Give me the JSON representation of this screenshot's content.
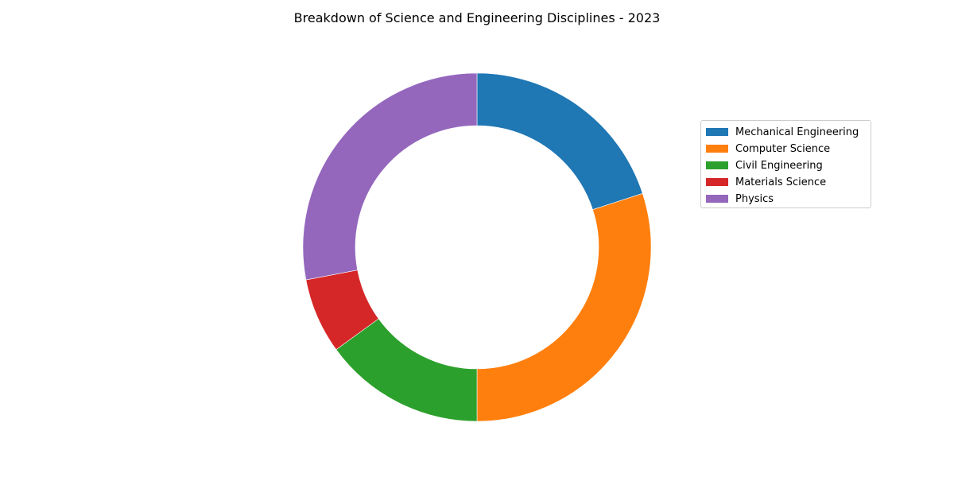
{
  "chart_data": {
    "type": "pie",
    "style": "donut",
    "title": "Breakdown of Science and Engineering Disciplines - 2023",
    "categories": [
      "Mechanical Engineering",
      "Computer Science",
      "Civil Engineering",
      "Materials Science",
      "Physics"
    ],
    "values": [
      20,
      30,
      15,
      7,
      28
    ],
    "colors": [
      "#1f77b4",
      "#ff7f0e",
      "#2ca02c",
      "#d62728",
      "#9467bd"
    ],
    "start_angle": "top",
    "direction": "clockwise",
    "legend": {
      "placement": "right",
      "entries": [
        "Mechanical Engineering",
        "Computer Science",
        "Civil Engineering",
        "Materials Science",
        "Physics"
      ]
    }
  }
}
